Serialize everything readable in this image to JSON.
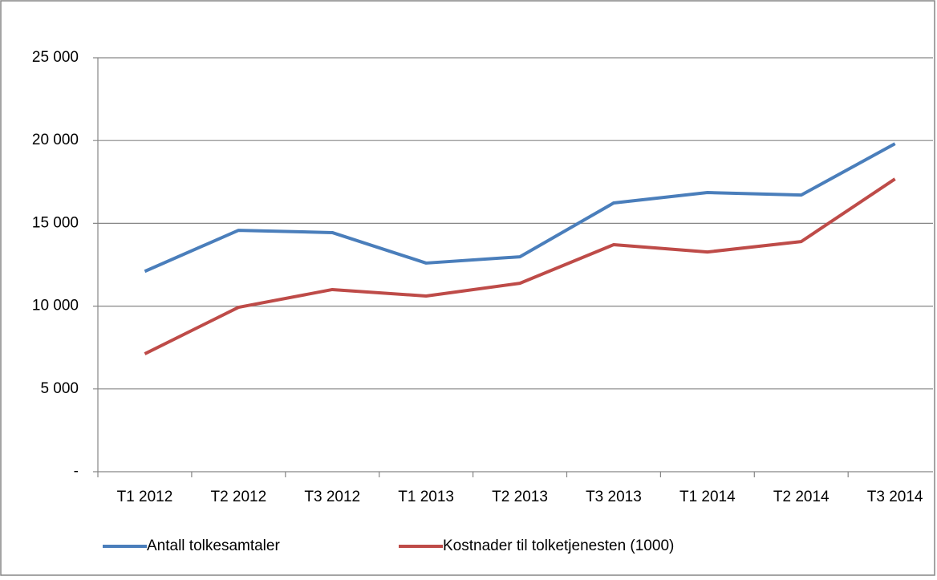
{
  "chart_data": {
    "type": "line",
    "categories": [
      "T1 2012",
      "T2 2012",
      "T3 2012",
      "T1 2013",
      "T2 2013",
      "T3 2013",
      "T1 2014",
      "T2 2014",
      "T3 2014"
    ],
    "series": [
      {
        "name": "Antall tolkesamtaler",
        "color": "#4a7ebb",
        "values": [
          12100,
          14580,
          14440,
          12600,
          12980,
          16230,
          16860,
          16710,
          19810
        ]
      },
      {
        "name": "Kostnader til tolketjenesten (1000)",
        "color": "#be4b48",
        "values": [
          7120,
          9930,
          11000,
          10610,
          11380,
          13710,
          13270,
          13900,
          17680
        ]
      }
    ],
    "ylim": [
      0,
      25000
    ],
    "yticks": [
      {
        "value": 0,
        "label": "-"
      },
      {
        "value": 5000,
        "label": "5 000"
      },
      {
        "value": 10000,
        "label": "10 000"
      },
      {
        "value": 15000,
        "label": "15 000"
      },
      {
        "value": 20000,
        "label": "20 000"
      },
      {
        "value": 25000,
        "label": "25 000"
      }
    ],
    "grid": true,
    "legend": "bottom"
  }
}
